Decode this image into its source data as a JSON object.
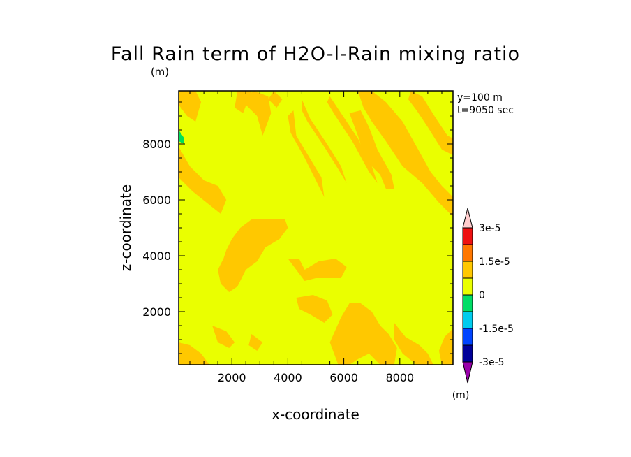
{
  "chart_data": {
    "type": "heatmap",
    "title": "Fall Rain term of H2O-l-Rain mixing ratio",
    "title_unit": "(m)",
    "annotations": [
      "y=100 m",
      "t=9050 sec"
    ],
    "xlabel": "x-coordinate",
    "ylabel": "z-coordinate",
    "xlim": [
      100,
      9900
    ],
    "ylim": [
      100,
      9900
    ],
    "xticks": [
      2000,
      4000,
      6000,
      8000
    ],
    "yticks": [
      2000,
      4000,
      6000,
      8000
    ],
    "xtick_labels": [
      "2000",
      "4000",
      "6000",
      "8000"
    ],
    "ytick_labels": [
      "2000",
      "4000",
      "6000",
      "8000"
    ],
    "background_level": "0 to -7.5e-6",
    "background_color": "#eaff00",
    "positive_color": "#ffc800",
    "negative_color": "#00e05a",
    "colorbar": {
      "unit": "(m)",
      "levels": [
        -3e-05,
        -2.25e-05,
        -1.5e-05,
        -7.5e-06,
        0,
        7.5e-06,
        1.5e-05,
        2.25e-05,
        3e-05
      ],
      "tick_labels": [
        {
          "value": 3e-05,
          "label": "3e-5"
        },
        {
          "value": 1.5e-05,
          "label": "1.5e-5"
        },
        {
          "value": 0,
          "label": "0"
        },
        {
          "value": -1.5e-05,
          "label": "-1.5e-5"
        },
        {
          "value": -3e-05,
          "label": "-3e-5"
        }
      ],
      "colors": [
        "#9900aa",
        "#000099",
        "#0044ff",
        "#00ccee",
        "#00dd66",
        "#eaff00",
        "#ffc800",
        "#ff7700",
        "#ee1111",
        "#ff8888",
        "#ffcccc"
      ]
    },
    "regions": [
      {
        "level": "positive",
        "points": [
          [
            100,
            9900
          ],
          [
            700,
            9900
          ],
          [
            900,
            9500
          ],
          [
            700,
            8800
          ],
          [
            400,
            9000
          ],
          [
            100,
            9400
          ]
        ]
      },
      {
        "level": "positive",
        "points": [
          [
            2200,
            9900
          ],
          [
            2700,
            9900
          ],
          [
            2400,
            9100
          ],
          [
            2100,
            9300
          ]
        ]
      },
      {
        "level": "positive",
        "points": [
          [
            2300,
            9600
          ],
          [
            2800,
            9900
          ],
          [
            3300,
            9700
          ],
          [
            3400,
            9100
          ],
          [
            3100,
            8300
          ],
          [
            2900,
            9000
          ],
          [
            2600,
            9300
          ]
        ]
      },
      {
        "level": "positive",
        "points": [
          [
            3500,
            9900
          ],
          [
            3800,
            9600
          ],
          [
            3600,
            9300
          ],
          [
            3300,
            9600
          ]
        ]
      },
      {
        "level": "positive",
        "points": [
          [
            4200,
            9200
          ],
          [
            4300,
            8300
          ],
          [
            4900,
            7300
          ],
          [
            5200,
            6800
          ],
          [
            5300,
            6100
          ],
          [
            5000,
            6700
          ],
          [
            4600,
            7500
          ],
          [
            4100,
            8400
          ],
          [
            4000,
            9000
          ]
        ]
      },
      {
        "level": "positive",
        "points": [
          [
            4500,
            9600
          ],
          [
            4800,
            8900
          ],
          [
            5400,
            8000
          ],
          [
            5900,
            7200
          ],
          [
            6100,
            6600
          ],
          [
            5800,
            7100
          ],
          [
            5300,
            7900
          ],
          [
            4700,
            8800
          ],
          [
            4500,
            9200
          ]
        ]
      },
      {
        "level": "positive",
        "points": [
          [
            5500,
            9700
          ],
          [
            5900,
            9100
          ],
          [
            6500,
            8200
          ],
          [
            7000,
            7200
          ],
          [
            7200,
            6600
          ],
          [
            6900,
            7000
          ],
          [
            6300,
            8100
          ],
          [
            5700,
            9000
          ],
          [
            5400,
            9500
          ]
        ]
      },
      {
        "level": "positive",
        "points": [
          [
            6200,
            9100
          ],
          [
            6500,
            8300
          ],
          [
            6800,
            7400
          ],
          [
            7300,
            6900
          ],
          [
            7500,
            6400
          ],
          [
            7800,
            6400
          ],
          [
            7700,
            6900
          ],
          [
            7200,
            7800
          ],
          [
            6900,
            8600
          ],
          [
            6600,
            9200
          ]
        ]
      },
      {
        "level": "positive",
        "points": [
          [
            6500,
            9900
          ],
          [
            7000,
            9900
          ],
          [
            7500,
            9500
          ],
          [
            8100,
            8800
          ],
          [
            8600,
            7900
          ],
          [
            9100,
            7000
          ],
          [
            9500,
            6500
          ],
          [
            9900,
            6100
          ],
          [
            9900,
            5400
          ],
          [
            9400,
            5900
          ],
          [
            8800,
            6600
          ],
          [
            8100,
            7200
          ],
          [
            7500,
            8100
          ],
          [
            7000,
            8800
          ],
          [
            6700,
            9300
          ]
        ]
      },
      {
        "level": "positive",
        "points": [
          [
            8400,
            9900
          ],
          [
            8800,
            9700
          ],
          [
            9300,
            8900
          ],
          [
            9700,
            8300
          ],
          [
            9900,
            8200
          ],
          [
            9900,
            7600
          ],
          [
            9500,
            7800
          ],
          [
            9000,
            8600
          ],
          [
            8600,
            9200
          ],
          [
            8300,
            9600
          ]
        ]
      },
      {
        "level": "positive",
        "points": [
          [
            100,
            7900
          ],
          [
            500,
            7200
          ],
          [
            1000,
            6700
          ],
          [
            1500,
            6500
          ],
          [
            1800,
            6000
          ],
          [
            1600,
            5500
          ],
          [
            1100,
            5900
          ],
          [
            600,
            6300
          ],
          [
            300,
            6600
          ],
          [
            100,
            6800
          ]
        ]
      },
      {
        "level": "positive",
        "points": [
          [
            1800,
            4200
          ],
          [
            2000,
            4600
          ],
          [
            2300,
            5000
          ],
          [
            2700,
            5300
          ],
          [
            3300,
            5300
          ],
          [
            3900,
            5300
          ],
          [
            4000,
            5000
          ],
          [
            3700,
            4600
          ],
          [
            3200,
            4300
          ],
          [
            2900,
            3800
          ],
          [
            2500,
            3500
          ],
          [
            2200,
            2900
          ],
          [
            1900,
            2700
          ],
          [
            1600,
            3000
          ],
          [
            1500,
            3500
          ],
          [
            1700,
            3900
          ]
        ]
      },
      {
        "level": "positive",
        "points": [
          [
            4000,
            3900
          ],
          [
            4300,
            3500
          ],
          [
            4600,
            3100
          ],
          [
            5000,
            3200
          ],
          [
            5400,
            3200
          ],
          [
            5900,
            3200
          ],
          [
            6100,
            3600
          ],
          [
            5700,
            3900
          ],
          [
            5100,
            3800
          ],
          [
            4600,
            3500
          ],
          [
            4400,
            3900
          ]
        ]
      },
      {
        "level": "positive",
        "points": [
          [
            4300,
            2500
          ],
          [
            4900,
            2600
          ],
          [
            5400,
            2400
          ],
          [
            5600,
            1900
          ],
          [
            5300,
            1600
          ],
          [
            4800,
            1900
          ],
          [
            4400,
            2100
          ]
        ]
      },
      {
        "level": "positive",
        "points": [
          [
            5500,
            900
          ],
          [
            5900,
            1800
          ],
          [
            6200,
            2300
          ],
          [
            6600,
            2300
          ],
          [
            7000,
            2000
          ],
          [
            7300,
            1500
          ],
          [
            7600,
            1200
          ],
          [
            7900,
            700
          ],
          [
            7800,
            100
          ],
          [
            7300,
            100
          ],
          [
            6900,
            500
          ],
          [
            6500,
            300
          ],
          [
            6200,
            100
          ],
          [
            5800,
            100
          ]
        ]
      },
      {
        "level": "positive",
        "points": [
          [
            7800,
            1600
          ],
          [
            8200,
            1100
          ],
          [
            8700,
            800
          ],
          [
            9000,
            500
          ],
          [
            9200,
            100
          ],
          [
            8600,
            100
          ],
          [
            8100,
            500
          ],
          [
            7800,
            1000
          ]
        ]
      },
      {
        "level": "positive",
        "points": [
          [
            9600,
            1100
          ],
          [
            9900,
            1400
          ],
          [
            9900,
            100
          ],
          [
            9500,
            100
          ],
          [
            9400,
            600
          ]
        ]
      },
      {
        "level": "positive",
        "points": [
          [
            100,
            900
          ],
          [
            500,
            800
          ],
          [
            900,
            500
          ],
          [
            1200,
            100
          ],
          [
            100,
            100
          ]
        ]
      },
      {
        "level": "positive",
        "points": [
          [
            1300,
            1500
          ],
          [
            1800,
            1300
          ],
          [
            2100,
            900
          ],
          [
            1900,
            700
          ],
          [
            1500,
            900
          ]
        ]
      },
      {
        "level": "positive",
        "points": [
          [
            2700,
            1200
          ],
          [
            3100,
            900
          ],
          [
            2900,
            600
          ],
          [
            2600,
            800
          ]
        ]
      },
      {
        "level": "negative",
        "points": [
          [
            100,
            8500
          ],
          [
            300,
            8200
          ],
          [
            300,
            8000
          ],
          [
            100,
            8100
          ]
        ]
      }
    ]
  }
}
